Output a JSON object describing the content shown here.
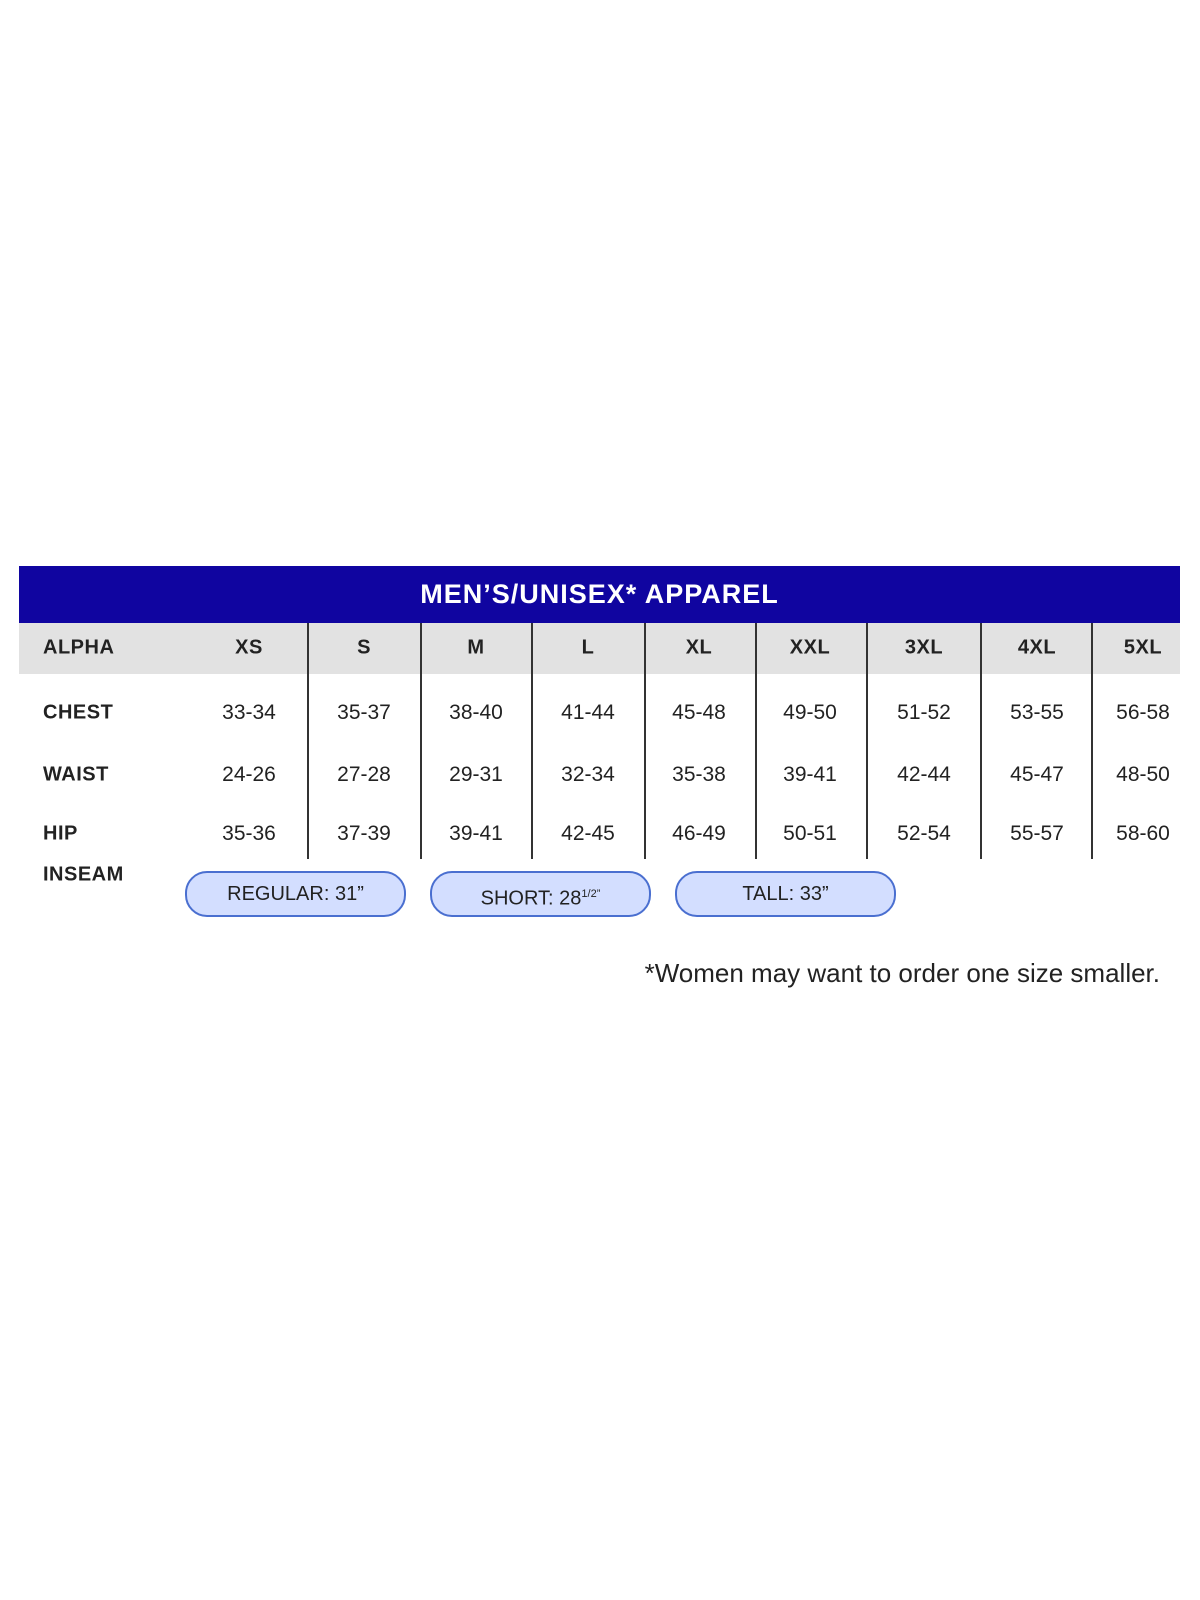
{
  "title": "MEN’S/UNISEX* APPAREL",
  "sizes": [
    "XS",
    "S",
    "M",
    "L",
    "XL",
    "XXL",
    "3XL",
    "4XL",
    "5XL"
  ],
  "rows": [
    {
      "label": "ALPHA"
    },
    {
      "label": "CHEST",
      "values": [
        "33-34",
        "35-37",
        "38-40",
        "41-44",
        "45-48",
        "49-50",
        "51-52",
        "53-55",
        "56-58"
      ]
    },
    {
      "label": "WAIST",
      "values": [
        "24-26",
        "27-28",
        "29-31",
        "32-34",
        "35-38",
        "39-41",
        "42-44",
        "45-47",
        "48-50"
      ]
    },
    {
      "label": "HIP",
      "values": [
        "35-36",
        "37-39",
        "39-41",
        "42-45",
        "46-49",
        "50-51",
        "52-54",
        "55-57",
        "58-60"
      ]
    }
  ],
  "inseam": {
    "label": "INSEAM",
    "options": [
      {
        "text": "REGULAR: 31”",
        "sup": ""
      },
      {
        "text": "SHORT: 28",
        "sup": "1/2”"
      },
      {
        "text": "TALL: 33”",
        "sup": ""
      }
    ]
  },
  "footnote": "*Women may want to order one size smaller.",
  "colors": {
    "banner": "#1005a0",
    "header_row": "#e2e2e2",
    "pill_fill": "#d3deff",
    "pill_border": "#4a6fd0"
  }
}
